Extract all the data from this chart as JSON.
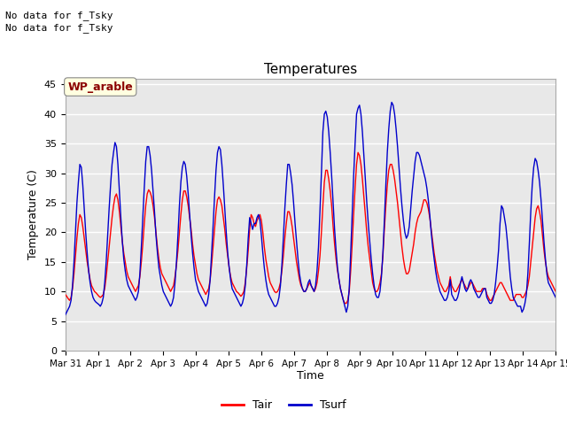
{
  "title": "Temperatures",
  "xlabel": "Time",
  "ylabel": "Temperature (C)",
  "ylim": [
    0,
    46
  ],
  "yticks": [
    0,
    5,
    10,
    15,
    20,
    25,
    30,
    35,
    40,
    45
  ],
  "x_labels": [
    "Mar 31",
    "Apr 1",
    "Apr 2",
    "Apr 3",
    "Apr 4",
    "Apr 5",
    "Apr 6",
    "Apr 7",
    "Apr 8",
    "Apr 9",
    "Apr 10",
    "Apr 11",
    "Apr 12",
    "Apr 13",
    "Apr 14",
    "Apr 15"
  ],
  "text_top_left": [
    "No data for f_Tsky",
    "No data for f_Tsky"
  ],
  "wp_label": "WP_arable",
  "tair_color": "#ff0000",
  "tsurf_color": "#0000cc",
  "legend_tair": "Tair",
  "legend_tsurf": "Tsurf",
  "plot_bg_color": "#e8e8e8",
  "grid_color": "#ffffff",
  "n_points": 336,
  "tair": [
    9.5,
    9.2,
    8.8,
    8.5,
    9.0,
    10.5,
    13.0,
    16.0,
    19.0,
    21.5,
    23.0,
    22.5,
    21.0,
    19.0,
    17.0,
    15.0,
    13.5,
    12.0,
    11.0,
    10.5,
    10.0,
    9.8,
    9.5,
    9.2,
    9.0,
    9.2,
    9.5,
    10.5,
    12.5,
    15.0,
    17.5,
    20.0,
    22.5,
    24.5,
    26.0,
    26.5,
    25.5,
    23.5,
    21.0,
    18.5,
    16.5,
    15.0,
    13.5,
    12.5,
    12.0,
    11.5,
    11.0,
    10.5,
    10.0,
    10.5,
    11.0,
    12.5,
    15.0,
    18.0,
    21.5,
    24.5,
    26.5,
    27.2,
    26.8,
    26.0,
    24.5,
    22.5,
    20.0,
    17.5,
    15.5,
    14.0,
    13.0,
    12.5,
    12.0,
    11.5,
    11.0,
    10.5,
    10.0,
    10.5,
    11.0,
    12.5,
    14.5,
    17.0,
    20.0,
    23.0,
    25.5,
    27.0,
    27.0,
    26.0,
    24.5,
    22.5,
    20.5,
    18.0,
    16.0,
    14.5,
    13.0,
    12.0,
    11.5,
    11.0,
    10.5,
    10.0,
    9.5,
    10.0,
    10.5,
    12.0,
    14.5,
    17.5,
    20.5,
    23.5,
    25.5,
    26.0,
    25.5,
    24.5,
    22.5,
    20.5,
    18.0,
    16.0,
    14.0,
    12.5,
    11.5,
    11.0,
    10.5,
    10.0,
    9.8,
    9.5,
    9.2,
    9.5,
    10.0,
    11.5,
    14.0,
    17.0,
    20.5,
    23.0,
    22.5,
    21.5,
    21.0,
    22.0,
    22.5,
    23.0,
    22.0,
    20.0,
    17.5,
    15.5,
    14.0,
    12.5,
    11.5,
    11.0,
    10.5,
    10.0,
    9.8,
    10.0,
    10.5,
    11.5,
    13.5,
    16.0,
    19.0,
    21.5,
    23.5,
    23.5,
    22.5,
    21.0,
    19.0,
    17.0,
    15.0,
    13.5,
    12.0,
    11.0,
    10.5,
    10.0,
    10.0,
    10.5,
    11.0,
    11.5,
    11.0,
    10.5,
    10.0,
    10.5,
    11.5,
    13.5,
    16.0,
    20.0,
    24.5,
    28.5,
    30.5,
    30.5,
    29.0,
    27.0,
    24.5,
    21.0,
    18.0,
    15.5,
    13.5,
    12.0,
    10.5,
    9.5,
    8.5,
    8.0,
    8.0,
    8.5,
    10.0,
    13.5,
    18.0,
    23.0,
    27.5,
    31.5,
    33.5,
    33.0,
    31.5,
    29.0,
    26.0,
    23.0,
    20.0,
    17.5,
    15.5,
    13.5,
    11.5,
    10.5,
    10.0,
    10.0,
    10.5,
    11.5,
    13.0,
    16.0,
    20.5,
    24.5,
    28.0,
    30.5,
    31.5,
    31.5,
    30.5,
    29.0,
    27.0,
    25.0,
    22.5,
    20.0,
    17.5,
    15.5,
    14.0,
    13.0,
    13.0,
    13.5,
    15.0,
    16.5,
    18.0,
    20.0,
    21.5,
    22.5,
    23.0,
    23.5,
    24.5,
    25.5,
    25.5,
    25.0,
    24.0,
    22.5,
    20.5,
    18.5,
    16.5,
    15.0,
    13.5,
    12.5,
    11.5,
    11.0,
    10.5,
    10.0,
    10.0,
    10.5,
    11.0,
    12.5,
    11.0,
    10.5,
    10.0,
    10.0,
    10.5,
    11.0,
    11.5,
    12.0,
    11.5,
    11.0,
    10.5,
    10.5,
    11.0,
    11.5,
    11.5,
    11.0,
    10.5,
    10.0,
    10.0,
    10.0,
    10.0,
    10.5,
    10.5,
    10.5,
    9.5,
    9.0,
    8.5,
    8.5,
    9.0,
    9.5,
    10.0,
    10.5,
    11.0,
    11.5,
    11.5,
    11.0,
    10.5,
    10.0,
    9.5,
    9.0,
    8.5,
    8.5,
    8.5,
    9.0,
    9.5,
    9.5,
    9.5,
    9.5,
    9.0,
    9.0,
    9.5,
    10.0,
    11.0,
    12.5,
    15.0,
    17.5,
    20.0,
    22.5,
    24.0,
    24.5,
    23.5,
    22.0,
    19.5,
    17.0,
    15.0,
    13.5,
    12.5,
    12.0,
    11.5,
    11.0,
    10.5,
    10.0
  ],
  "tsurf": [
    6.0,
    6.5,
    7.0,
    7.5,
    8.5,
    11.0,
    15.0,
    20.0,
    25.0,
    28.5,
    31.5,
    31.0,
    28.0,
    24.0,
    20.0,
    16.5,
    13.5,
    11.5,
    10.0,
    9.0,
    8.5,
    8.2,
    8.0,
    7.8,
    7.5,
    8.0,
    9.0,
    11.5,
    15.0,
    19.5,
    24.0,
    28.0,
    31.5,
    33.5,
    35.2,
    34.5,
    31.5,
    27.0,
    22.5,
    18.5,
    15.5,
    13.5,
    12.0,
    11.0,
    10.5,
    10.0,
    9.5,
    9.0,
    8.5,
    9.0,
    10.0,
    13.0,
    17.5,
    22.5,
    27.5,
    32.0,
    34.5,
    34.5,
    33.0,
    30.5,
    27.0,
    23.5,
    19.5,
    16.5,
    14.0,
    12.5,
    11.0,
    10.0,
    9.5,
    9.0,
    8.5,
    8.0,
    7.5,
    8.0,
    9.0,
    11.5,
    15.0,
    19.5,
    24.5,
    28.5,
    31.0,
    32.0,
    31.5,
    29.5,
    26.5,
    23.0,
    19.5,
    16.5,
    14.0,
    12.0,
    11.0,
    10.0,
    9.5,
    9.0,
    8.5,
    8.0,
    7.5,
    8.0,
    9.5,
    12.0,
    16.5,
    21.0,
    26.0,
    30.5,
    33.5,
    34.5,
    34.0,
    31.5,
    28.0,
    24.0,
    20.0,
    16.5,
    14.0,
    12.0,
    10.5,
    10.0,
    9.5,
    9.0,
    8.5,
    8.0,
    7.5,
    8.0,
    9.0,
    11.0,
    14.5,
    19.0,
    22.5,
    21.5,
    20.5,
    21.5,
    21.5,
    22.5,
    23.0,
    22.0,
    19.5,
    16.5,
    14.0,
    12.0,
    10.5,
    9.5,
    9.0,
    8.5,
    8.0,
    7.5,
    7.5,
    8.0,
    9.0,
    11.0,
    14.5,
    19.0,
    24.0,
    28.0,
    31.5,
    31.5,
    30.0,
    28.0,
    25.0,
    21.5,
    18.5,
    15.5,
    13.0,
    11.5,
    10.5,
    10.0,
    10.0,
    10.5,
    11.5,
    12.0,
    11.0,
    10.5,
    10.0,
    11.0,
    13.5,
    17.5,
    23.5,
    30.0,
    37.0,
    40.0,
    40.5,
    39.5,
    37.0,
    33.5,
    29.5,
    25.0,
    20.5,
    17.0,
    14.0,
    12.0,
    10.5,
    9.5,
    8.5,
    7.5,
    6.5,
    7.5,
    10.5,
    16.5,
    23.0,
    29.5,
    35.0,
    40.0,
    41.0,
    41.5,
    40.0,
    37.0,
    33.0,
    29.0,
    25.0,
    21.5,
    18.5,
    15.5,
    13.0,
    11.0,
    9.5,
    9.0,
    9.0,
    10.0,
    12.5,
    16.5,
    22.0,
    28.0,
    33.5,
    37.5,
    40.5,
    42.0,
    41.5,
    40.0,
    37.5,
    34.5,
    31.0,
    27.5,
    24.5,
    22.0,
    20.0,
    19.0,
    19.5,
    21.0,
    24.0,
    27.0,
    29.5,
    32.0,
    33.5,
    33.5,
    33.0,
    32.0,
    31.0,
    30.0,
    29.0,
    27.5,
    25.5,
    23.0,
    20.0,
    17.5,
    15.5,
    13.5,
    12.0,
    11.0,
    10.0,
    9.5,
    9.0,
    8.5,
    8.5,
    9.0,
    10.0,
    12.0,
    9.5,
    9.0,
    8.5,
    8.5,
    9.0,
    10.0,
    11.5,
    12.5,
    11.5,
    10.5,
    10.0,
    10.5,
    11.5,
    12.0,
    11.5,
    10.5,
    10.0,
    9.5,
    9.0,
    9.0,
    9.5,
    10.0,
    10.5,
    10.5,
    9.0,
    8.5,
    8.0,
    8.0,
    8.5,
    9.5,
    11.5,
    14.0,
    17.0,
    21.5,
    24.5,
    24.0,
    22.5,
    21.0,
    18.5,
    15.5,
    12.5,
    10.5,
    9.0,
    8.5,
    8.0,
    7.5,
    7.5,
    7.5,
    6.5,
    7.0,
    8.0,
    9.5,
    13.0,
    18.0,
    23.5,
    28.0,
    31.0,
    32.5,
    32.0,
    30.5,
    28.5,
    25.5,
    22.0,
    18.5,
    15.5,
    13.0,
    11.5,
    11.0,
    10.5,
    10.0,
    9.5,
    9.0
  ]
}
